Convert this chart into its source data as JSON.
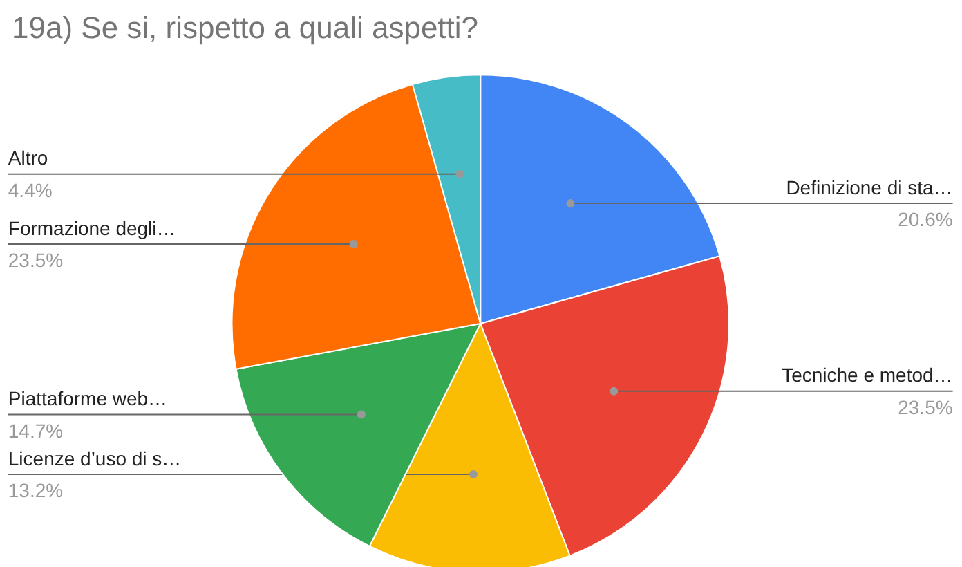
{
  "chart_data": {
    "type": "pie",
    "title": "19a) Se si, rispetto a quali aspetti?",
    "categories": [
      "Definizione di sta…",
      "Tecniche e metod…",
      "Licenze d’uso di s…",
      "Piattaforme web…",
      "Formazione degli…",
      "Altro"
    ],
    "values": [
      20.6,
      23.5,
      13.2,
      14.7,
      23.5,
      4.4
    ],
    "colors": [
      "#4285f4",
      "#ea4335",
      "#fbbc04",
      "#34a853",
      "#ff6d01",
      "#46bdc6"
    ],
    "value_labels": [
      "20.6%",
      "23.5%",
      "13.2%",
      "14.7%",
      "23.5%",
      "4.4%"
    ]
  }
}
